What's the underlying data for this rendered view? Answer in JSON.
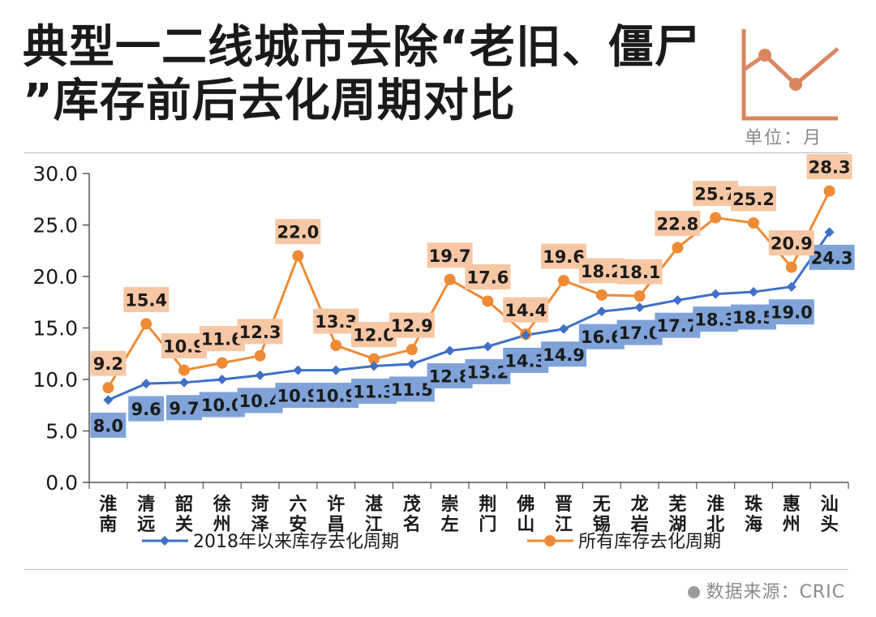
{
  "title_line1": "典型一二线城市去除“老旧、僵尸",
  "title_line2": "”库存前后去化周期对比",
  "unit_label": "单位：月",
  "source_label": "数据来源：CRIC",
  "colors": {
    "series_blue": "#3f6fc6",
    "series_orange": "#ef8a34",
    "label_blue_bg": "#7fa3d8",
    "label_orange_bg": "#f7c7a4",
    "deco": "#d9865f"
  },
  "chart_data": {
    "type": "line",
    "title": "典型一二线城市去除“老旧、僵尸”库存前后去化周期对比",
    "ylim": [
      0,
      30
    ],
    "yticks": [
      "0.0",
      "5.0",
      "10.0",
      "15.0",
      "20.0",
      "25.0",
      "30.0"
    ],
    "categories": [
      "淮南",
      "清远",
      "韶关",
      "徐州",
      "菏泽",
      "六安",
      "许昌",
      "湛江",
      "茂名",
      "崇左",
      "荆门",
      "佛山",
      "晋江",
      "无锡",
      "龙岩",
      "芜湖",
      "淮北",
      "珠海",
      "惠州",
      "汕头"
    ],
    "series": [
      {
        "name": "2018年以来库存去化周期",
        "values": [
          8.0,
          9.6,
          9.7,
          10.0,
          10.4,
          10.9,
          10.9,
          11.3,
          11.5,
          12.8,
          13.2,
          14.3,
          14.9,
          16.6,
          17.0,
          17.7,
          18.3,
          18.5,
          19.0,
          24.3
        ],
        "labels": [
          "8.0",
          "9.6",
          "9.7",
          "10.0",
          "10.4",
          "10.9",
          "10.9",
          "11.3",
          "11.5",
          "12.8",
          "13.2",
          "14.3",
          "14.9",
          "16.6",
          "17.0",
          "17.7",
          "18.3",
          "18.5",
          "19.0",
          "24.3"
        ]
      },
      {
        "name": "所有库存去化周期",
        "values": [
          9.2,
          15.4,
          10.9,
          11.6,
          12.3,
          22.0,
          13.3,
          12.0,
          12.9,
          19.7,
          17.6,
          14.4,
          19.6,
          18.2,
          18.1,
          22.8,
          25.7,
          25.2,
          20.9,
          28.3
        ],
        "labels": [
          "9.2",
          "15.4",
          "10.9",
          "11.6",
          "12.3",
          "22.0",
          "13.3",
          "12.0",
          "12.9",
          "19.7",
          "17.6",
          "14.4",
          "19.6",
          "18.2",
          "18.1",
          "22.8",
          "25.7",
          "25.2",
          "20.9",
          "28.3"
        ]
      }
    ],
    "legend_position": "bottom",
    "grid": false
  }
}
